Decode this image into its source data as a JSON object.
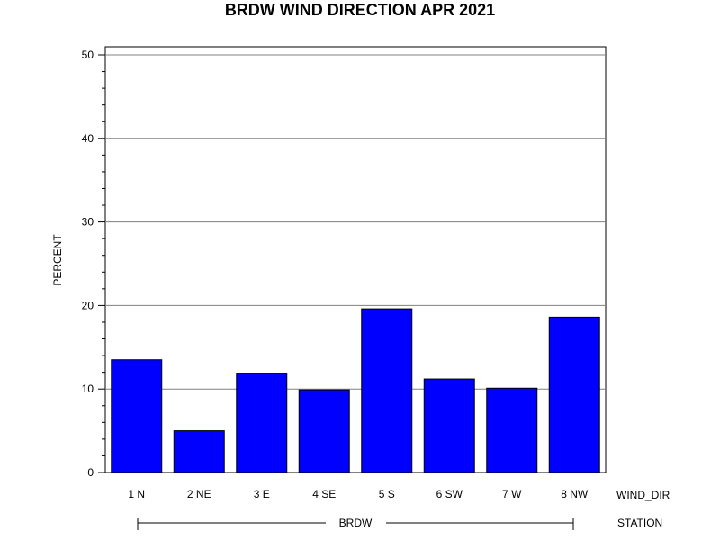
{
  "chart_data": {
    "type": "bar",
    "title": "BRDW WIND DIRECTION APR 2021",
    "ylabel": "PERCENT",
    "xlabel": "WIND_DIR",
    "group_axis_label": "STATION",
    "group_label": "BRDW",
    "categories": [
      "1 N",
      "2 NE",
      "3 E",
      "4 SE",
      "5 S",
      "6 SW",
      "7 W",
      "8 NW"
    ],
    "values": [
      13.5,
      5.0,
      11.9,
      9.9,
      19.6,
      11.2,
      10.1,
      18.6
    ],
    "ylim": [
      0,
      50
    ],
    "yticks": [
      0,
      10,
      20,
      30,
      40,
      50
    ],
    "grid": true,
    "bar_color": "#0000ff",
    "bar_edge_color": "#000000",
    "grid_color": "#808080"
  }
}
